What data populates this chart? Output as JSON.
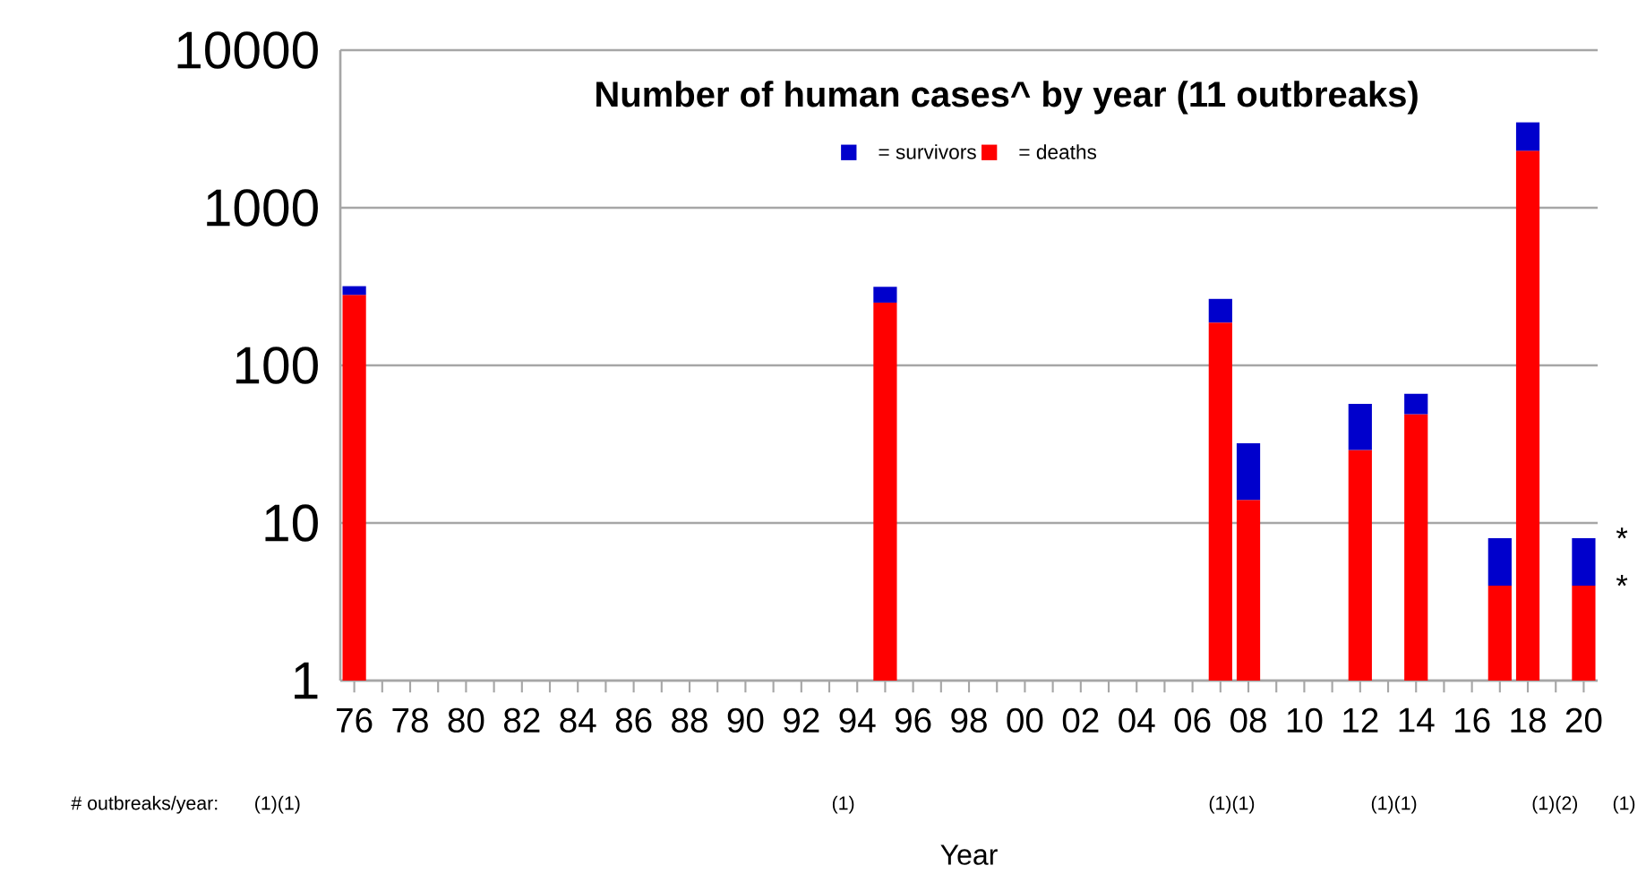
{
  "chart_data": {
    "type": "bar",
    "title": "Number of human cases^ by year (11 outbreaks)",
    "xlabel": "Year",
    "x": [
      1976,
      1995,
      2007,
      2008,
      2012,
      2014,
      2017,
      2018,
      2020
    ],
    "stacked": true,
    "series": [
      {
        "name": "= deaths",
        "color": "#ff0000",
        "values": [
          280,
          250,
          187,
          14,
          29,
          49,
          4,
          2299,
          4
        ]
      },
      {
        "name": "= survivors",
        "color": "#0000cc",
        "values": [
          38,
          65,
          77,
          18,
          28,
          17,
          4,
          1182,
          4
        ]
      }
    ],
    "xlim": [
      1975.5,
      2020.5
    ],
    "xticks": [
      {
        "value": 1976,
        "label": "76"
      },
      {
        "value": 1978,
        "label": "78"
      },
      {
        "value": 1980,
        "label": "80"
      },
      {
        "value": 1982,
        "label": "82"
      },
      {
        "value": 1984,
        "label": "84"
      },
      {
        "value": 1986,
        "label": "86"
      },
      {
        "value": 1988,
        "label": "88"
      },
      {
        "value": 1990,
        "label": "90"
      },
      {
        "value": 1992,
        "label": "92"
      },
      {
        "value": 1994,
        "label": "94"
      },
      {
        "value": 1996,
        "label": "96"
      },
      {
        "value": 1998,
        "label": "98"
      },
      {
        "value": 2000,
        "label": "00"
      },
      {
        "value": 2002,
        "label": "02"
      },
      {
        "value": 2004,
        "label": "04"
      },
      {
        "value": 2006,
        "label": "06"
      },
      {
        "value": 2008,
        "label": "08"
      },
      {
        "value": 2010,
        "label": "10"
      },
      {
        "value": 2012,
        "label": "12"
      },
      {
        "value": 2014,
        "label": "14"
      },
      {
        "value": 2016,
        "label": "16"
      },
      {
        "value": 2018,
        "label": "18"
      },
      {
        "value": 2020,
        "label": "20"
      }
    ],
    "ylim": [
      1,
      10000
    ],
    "yticks": [
      1,
      10,
      100,
      1000,
      10000
    ],
    "log": "y",
    "grid": "y",
    "legend": "top",
    "annotations": [
      "# outbreaks/year:",
      "(1)(1)",
      "(1)",
      "(1)(1)",
      "(1)(1)",
      "(1)(2)",
      "(1)",
      {
        "text": "*",
        "x": 2020,
        "y": 8
      },
      {
        "text": "*",
        "x": 2020,
        "y": 4
      }
    ]
  }
}
